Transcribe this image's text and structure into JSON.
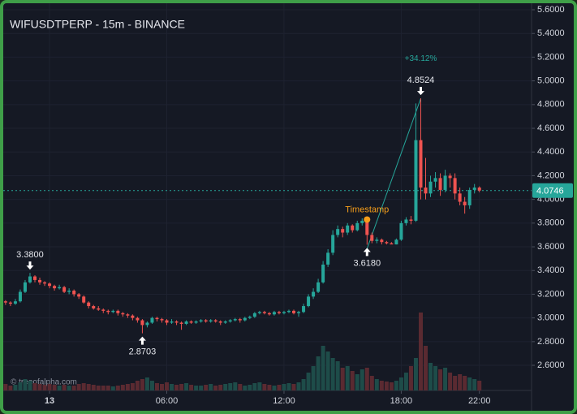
{
  "chart_data": {
    "type": "candlestick",
    "title": "WIFUSDTPERP - 15m - BINANCE",
    "watermark": "© treeofalpha.com",
    "x": [
      -2.25,
      -2,
      -1.75,
      -1.5,
      -1.25,
      -1,
      -0.75,
      -0.5,
      -0.25,
      0,
      0.25,
      0.5,
      0.75,
      1,
      1.25,
      1.5,
      1.75,
      2,
      2.25,
      2.5,
      2.75,
      3,
      3.25,
      3.5,
      3.75,
      4,
      4.25,
      4.5,
      4.75,
      5,
      5.25,
      5.5,
      5.75,
      6,
      6.25,
      6.5,
      6.75,
      7,
      7.25,
      7.5,
      7.75,
      8,
      8.25,
      8.5,
      8.75,
      9,
      9.25,
      9.5,
      9.75,
      10,
      10.25,
      10.5,
      10.75,
      11,
      11.25,
      11.5,
      11.75,
      12,
      12.25,
      12.5,
      12.75,
      13,
      13.25,
      13.5,
      13.75,
      14,
      14.25,
      14.5,
      14.75,
      15,
      15.25,
      15.5,
      15.75,
      16,
      16.25,
      16.5,
      16.75,
      17,
      17.25,
      17.5,
      17.75,
      18,
      18.25,
      18.5,
      18.75,
      19,
      19.25,
      19.5,
      19.75,
      20,
      20.25,
      20.5,
      20.75,
      21,
      21.25,
      21.5,
      21.75,
      22
    ],
    "open": [
      3.14,
      3.13,
      3.12,
      3.14,
      3.22,
      3.3,
      3.35,
      3.32,
      3.3,
      3.29,
      3.27,
      3.25,
      3.26,
      3.22,
      3.23,
      3.2,
      3.18,
      3.13,
      3.1,
      3.08,
      3.07,
      3.06,
      3.05,
      3.06,
      3.04,
      3.03,
      3.02,
      3.0,
      2.98,
      2.94,
      2.96,
      3.0,
      2.99,
      2.98,
      2.96,
      2.97,
      2.96,
      2.95,
      2.97,
      2.96,
      2.97,
      2.98,
      2.97,
      2.98,
      2.97,
      2.96,
      2.97,
      2.98,
      2.99,
      2.98,
      3.0,
      3.01,
      3.04,
      3.05,
      3.04,
      3.03,
      3.05,
      3.04,
      3.05,
      3.06,
      3.04,
      3.05,
      3.1,
      3.18,
      3.22,
      3.3,
      3.45,
      3.55,
      3.7,
      3.75,
      3.72,
      3.78,
      3.74,
      3.8,
      3.82,
      3.7,
      3.65,
      3.66,
      3.64,
      3.63,
      3.62,
      3.66,
      3.8,
      3.83,
      3.82,
      4.5,
      4.1,
      4.05,
      4.15,
      4.18,
      4.08,
      4.2,
      4.18,
      4.05,
      3.98,
      3.95,
      4.08,
      4.1
    ],
    "high": [
      3.15,
      3.14,
      3.16,
      3.24,
      3.32,
      3.38,
      3.36,
      3.34,
      3.31,
      3.3,
      3.28,
      3.28,
      3.27,
      3.25,
      3.24,
      3.21,
      3.19,
      3.14,
      3.11,
      3.1,
      3.08,
      3.07,
      3.07,
      3.07,
      3.05,
      3.04,
      3.03,
      3.01,
      2.99,
      2.97,
      3.01,
      3.01,
      3.0,
      2.99,
      2.99,
      2.98,
      2.97,
      2.98,
      2.98,
      2.98,
      2.99,
      2.99,
      2.99,
      2.99,
      2.98,
      2.98,
      2.99,
      3.0,
      3.0,
      3.01,
      3.02,
      3.05,
      3.06,
      3.06,
      3.05,
      3.06,
      3.06,
      3.06,
      3.07,
      3.07,
      3.06,
      3.12,
      3.2,
      3.25,
      3.33,
      3.48,
      3.58,
      3.74,
      3.78,
      3.77,
      3.8,
      3.79,
      3.82,
      3.84,
      3.83,
      3.72,
      3.68,
      3.67,
      3.65,
      3.64,
      3.67,
      3.82,
      3.85,
      3.86,
      4.81,
      4.8524,
      4.35,
      4.2,
      4.23,
      4.22,
      4.25,
      4.22,
      4.22,
      4.1,
      4.02,
      4.1,
      4.13,
      4.11
    ],
    "low": [
      3.11,
      3.1,
      3.11,
      3.13,
      3.21,
      3.29,
      3.3,
      3.28,
      3.27,
      3.25,
      3.23,
      3.24,
      3.21,
      3.2,
      3.18,
      3.16,
      3.12,
      3.08,
      3.07,
      3.06,
      3.04,
      3.03,
      3.04,
      3.02,
      3.01,
      3.0,
      2.98,
      2.96,
      2.8703,
      2.92,
      2.95,
      2.97,
      2.96,
      2.94,
      2.95,
      2.94,
      2.9,
      2.94,
      2.95,
      2.95,
      2.96,
      2.96,
      2.96,
      2.96,
      2.94,
      2.95,
      2.96,
      2.97,
      2.96,
      2.97,
      2.99,
      3.0,
      3.03,
      3.03,
      3.02,
      3.02,
      3.03,
      3.03,
      3.04,
      3.03,
      3.01,
      3.04,
      3.09,
      3.16,
      3.21,
      3.29,
      3.43,
      3.53,
      3.68,
      3.68,
      3.7,
      3.72,
      3.73,
      3.78,
      3.618,
      3.63,
      3.63,
      3.62,
      3.62,
      3.625,
      3.62,
      3.65,
      3.78,
      3.79,
      3.81,
      4.0,
      4.0,
      4.02,
      4.1,
      4.03,
      4.06,
      4.1,
      4.0,
      3.95,
      3.88,
      3.92,
      4.05,
      4.06
    ],
    "close": [
      3.13,
      3.12,
      3.14,
      3.22,
      3.3,
      3.35,
      3.32,
      3.3,
      3.29,
      3.27,
      3.25,
      3.26,
      3.22,
      3.23,
      3.2,
      3.18,
      3.13,
      3.1,
      3.08,
      3.07,
      3.06,
      3.05,
      3.06,
      3.04,
      3.03,
      3.02,
      3.0,
      2.98,
      2.94,
      2.96,
      3.0,
      2.99,
      2.98,
      2.96,
      2.97,
      2.96,
      2.95,
      2.97,
      2.96,
      2.97,
      2.98,
      2.97,
      2.98,
      2.97,
      2.96,
      2.97,
      2.98,
      2.99,
      2.98,
      3.0,
      3.01,
      3.04,
      3.05,
      3.04,
      3.03,
      3.05,
      3.04,
      3.05,
      3.06,
      3.04,
      3.05,
      3.1,
      3.18,
      3.22,
      3.3,
      3.45,
      3.55,
      3.7,
      3.75,
      3.72,
      3.78,
      3.74,
      3.8,
      3.82,
      3.7,
      3.65,
      3.66,
      3.64,
      3.63,
      3.62,
      3.66,
      3.8,
      3.83,
      3.82,
      4.5,
      4.1,
      4.05,
      4.15,
      4.18,
      4.08,
      4.2,
      4.18,
      4.05,
      3.98,
      3.95,
      4.08,
      4.1,
      4.0746
    ],
    "volume": [
      8,
      6,
      7,
      10,
      14,
      12,
      9,
      8,
      7,
      8,
      7,
      6,
      7,
      6,
      6,
      8,
      9,
      8,
      7,
      6,
      6,
      6,
      5,
      6,
      7,
      8,
      9,
      12,
      14,
      16,
      12,
      9,
      8,
      10,
      8,
      7,
      8,
      9,
      7,
      6,
      6,
      7,
      8,
      6,
      7,
      8,
      9,
      10,
      8,
      6,
      7,
      9,
      10,
      8,
      7,
      6,
      7,
      8,
      9,
      8,
      10,
      14,
      22,
      30,
      42,
      55,
      48,
      40,
      36,
      28,
      30,
      24,
      20,
      26,
      28,
      18,
      14,
      12,
      11,
      10,
      12,
      16,
      22,
      30,
      40,
      96,
      55,
      34,
      30,
      26,
      28,
      22,
      18,
      20,
      18,
      16,
      14,
      12
    ],
    "up_color": "#26a69a",
    "down_color": "#ef5350",
    "up_volume_color": "#1e4c49",
    "down_volume_color": "#5a2a31",
    "xlim": [
      -2.37,
      24.67
    ],
    "xticks": [
      {
        "value": 0,
        "label": "13"
      },
      {
        "value": 6,
        "label": "06:00"
      },
      {
        "value": 12,
        "label": "12:00"
      },
      {
        "value": 18,
        "label": "18:00"
      },
      {
        "value": 22,
        "label": "22:00"
      }
    ],
    "ylim": [
      2.388,
      5.655
    ],
    "yticks": [
      {
        "value": 2.6,
        "label": "2.6000"
      },
      {
        "value": 2.8,
        "label": "2.8000"
      },
      {
        "value": 3.0,
        "label": "3.0000"
      },
      {
        "value": 3.2,
        "label": "3.2000"
      },
      {
        "value": 3.4,
        "label": "3.4000"
      },
      {
        "value": 3.6,
        "label": "3.6000"
      },
      {
        "value": 3.8,
        "label": "3.8000"
      },
      {
        "value": 4.0,
        "label": "4.0000"
      },
      {
        "value": 4.2,
        "label": "4.2000"
      },
      {
        "value": 4.4,
        "label": "4.4000"
      },
      {
        "value": 4.6,
        "label": "4.6000"
      },
      {
        "value": 4.8,
        "label": "4.8000"
      },
      {
        "value": 5.0,
        "label": "5.0000"
      },
      {
        "value": 5.2,
        "label": "5.2000"
      },
      {
        "value": 5.4,
        "label": "5.4000"
      },
      {
        "value": 5.6,
        "label": "5.6000"
      }
    ],
    "grid": true,
    "annotations": [
      {
        "kind": "high",
        "x": -1,
        "value": 3.38,
        "label": "3.3800"
      },
      {
        "kind": "low",
        "x": 4.75,
        "value": 2.8703,
        "label": "2.8703"
      },
      {
        "kind": "low",
        "x": 16.25,
        "value": 3.618,
        "label": "3.6180"
      },
      {
        "kind": "high",
        "x": 19,
        "value": 4.8524,
        "label": "4.8524"
      }
    ],
    "change": {
      "value": 34.12,
      "label": "+34.12%"
    },
    "marker": {
      "label": "Timestamp",
      "x": 16.25,
      "value": 3.83,
      "color": "#f59d1a"
    }
  }
}
